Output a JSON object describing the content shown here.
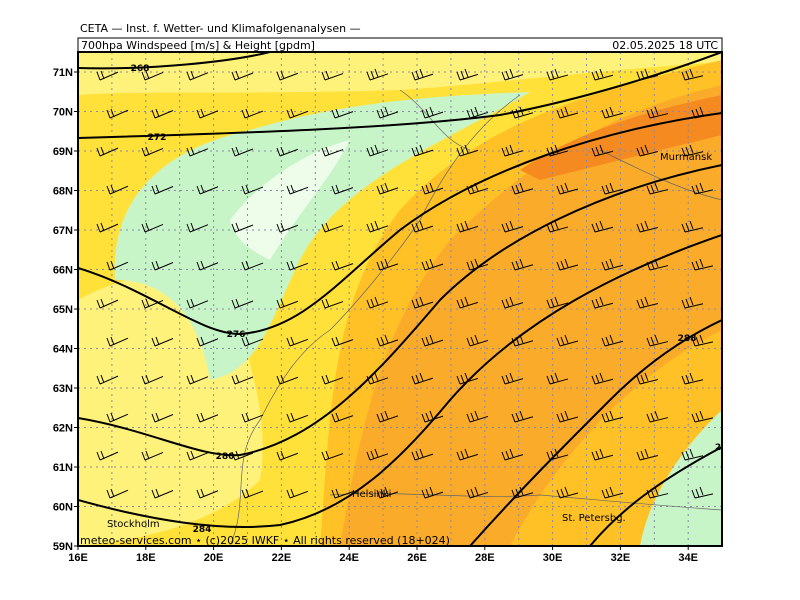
{
  "header": {
    "title": "CETA — Inst. f. Wetter- und Klimafolgenanalysen —",
    "product": "700hpa Windspeed [m/s] & Height [gpdm]",
    "valid": "02.05.2025 18 UTC"
  },
  "axes": {
    "x_labels": [
      "16E",
      "18E",
      "20E",
      "22E",
      "24E",
      "26E",
      "28E",
      "30E",
      "32E",
      "34E"
    ],
    "y_labels": [
      "59N",
      "60N",
      "61N",
      "62N",
      "63N",
      "64N",
      "65N",
      "66N",
      "67N",
      "68N",
      "69N",
      "70N",
      "71N"
    ]
  },
  "contour_labels": [
    "268",
    "272",
    "276",
    "280",
    "284",
    "288",
    "2"
  ],
  "places": [
    "Murmansk",
    "Helsinki",
    "Stockholm",
    "St. Petersbg."
  ],
  "footer": "meteo-services.com ⋆ (c)2025 IWKF ⋆ All rights reserved (18+024)"
}
